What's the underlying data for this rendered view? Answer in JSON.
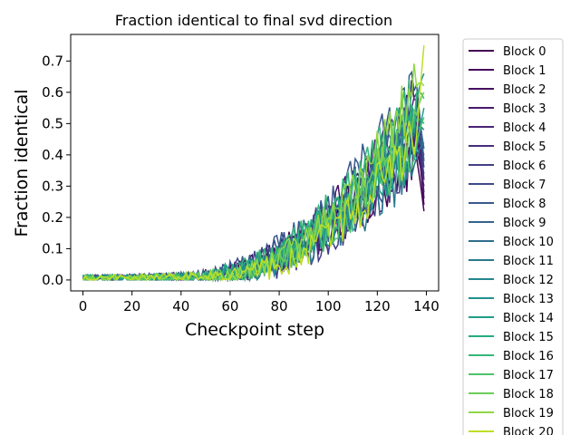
{
  "chart_data": {
    "type": "line",
    "title": "Fraction identical to final svd direction",
    "xlabel": "Checkpoint step",
    "ylabel": "Fraction identical",
    "xlim": [
      -5,
      145
    ],
    "ylim": [
      -0.035,
      0.785
    ],
    "xticks": [
      0,
      20,
      40,
      60,
      80,
      100,
      120,
      140
    ],
    "yticks": [
      0.0,
      0.1,
      0.2,
      0.3,
      0.4,
      0.5,
      0.6,
      0.7
    ],
    "x_range": [
      0,
      139
    ],
    "grid": false,
    "legend_position": "outside-right",
    "series": [
      {
        "name": "Block 0",
        "color": "#440154",
        "final": 0.22
      },
      {
        "name": "Block 1",
        "color": "#46085c",
        "final": 0.24
      },
      {
        "name": "Block 2",
        "color": "#471063",
        "final": 0.26
      },
      {
        "name": "Block 3",
        "color": "#481a6c",
        "final": 0.3
      },
      {
        "name": "Block 4",
        "color": "#482475",
        "final": 0.28
      },
      {
        "name": "Block 5",
        "color": "#472d7b",
        "final": 0.32
      },
      {
        "name": "Block 6",
        "color": "#423f85",
        "final": 0.34
      },
      {
        "name": "Block 7",
        "color": "#3e4989",
        "final": 0.36
      },
      {
        "name": "Block 8",
        "color": "#38588c",
        "final": 0.38
      },
      {
        "name": "Block 9",
        "color": "#33638d",
        "final": 0.4
      },
      {
        "name": "Block 10",
        "color": "#2e6e8e",
        "final": 0.42
      },
      {
        "name": "Block 11",
        "color": "#29798e",
        "final": 0.44
      },
      {
        "name": "Block 12",
        "color": "#24878e",
        "final": 0.48
      },
      {
        "name": "Block 13",
        "color": "#21918c",
        "final": 0.66
      },
      {
        "name": "Block 14",
        "color": "#1f9e89",
        "final": 0.55
      },
      {
        "name": "Block 15",
        "color": "#25ab82",
        "final": 0.5
      },
      {
        "name": "Block 16",
        "color": "#35b779",
        "final": 0.58
      },
      {
        "name": "Block 17",
        "color": "#4ec36b",
        "final": 0.52
      },
      {
        "name": "Block 18",
        "color": "#6ccd5a",
        "final": 0.6
      },
      {
        "name": "Block 19",
        "color": "#90d743",
        "final": 0.62
      },
      {
        "name": "Block 20",
        "color": "#bddf26",
        "final": 0.75
      }
    ]
  }
}
